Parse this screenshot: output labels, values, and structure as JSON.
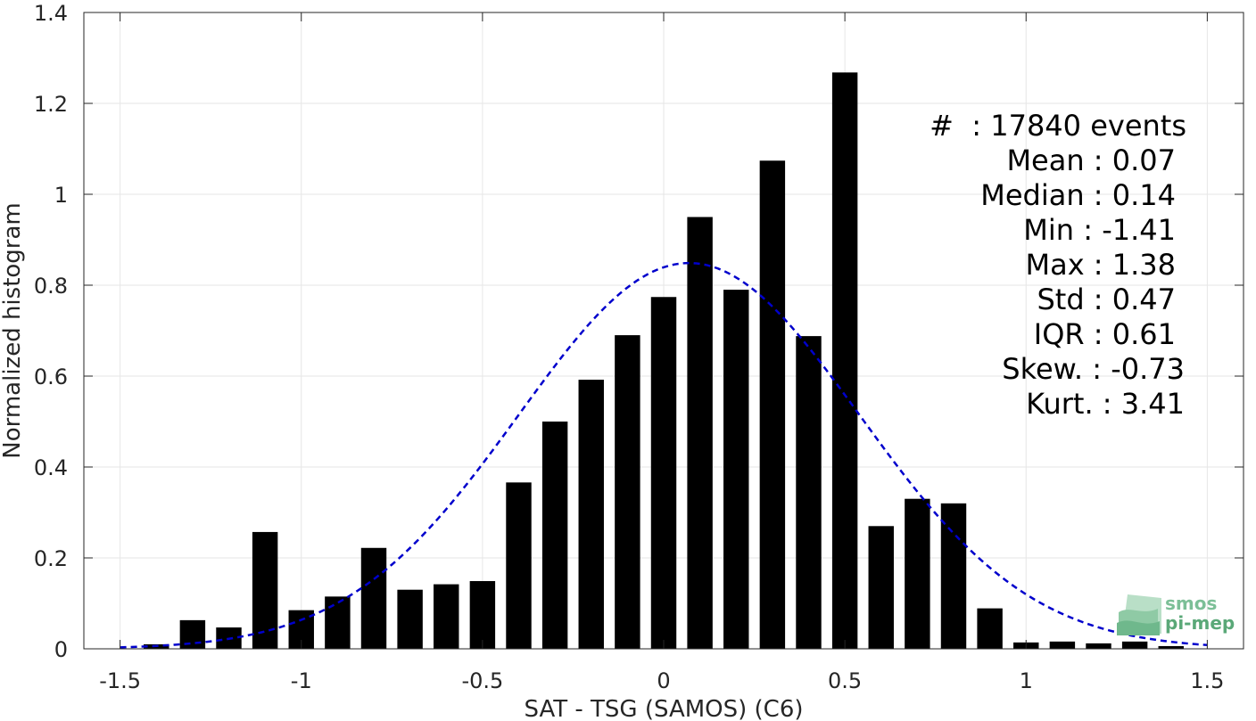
{
  "chart_data": {
    "type": "bar",
    "xlabel": "SAT - TSG (SAMOS) (C6)",
    "ylabel": "Normalized histogram",
    "xlim": [
      -1.6,
      1.6
    ],
    "ylim": [
      0,
      1.4
    ],
    "xticks": [
      "-1.5",
      "-1",
      "-0.5",
      "0",
      "0.5",
      "1",
      "1.5"
    ],
    "yticks": [
      "0",
      "0.2",
      "0.4",
      "0.6",
      "0.8",
      "1",
      "1.2",
      "1.4"
    ],
    "grid": true,
    "bar_width": 0.07,
    "x": [
      -1.4,
      -1.3,
      -1.2,
      -1.1,
      -1.0,
      -0.9,
      -0.8,
      -0.7,
      -0.6,
      -0.5,
      -0.4,
      -0.3,
      -0.2,
      -0.1,
      0.0,
      0.1,
      0.2,
      0.3,
      0.4,
      0.5,
      0.6,
      0.7,
      0.8,
      0.9,
      1.0,
      1.1,
      1.2,
      1.3,
      1.4
    ],
    "values": [
      0.01,
      0.063,
      0.047,
      0.257,
      0.085,
      0.115,
      0.222,
      0.13,
      0.142,
      0.149,
      0.366,
      0.5,
      0.592,
      0.69,
      0.774,
      0.95,
      0.79,
      1.074,
      0.688,
      1.268,
      0.27,
      0.33,
      0.32,
      0.089,
      0.014,
      0.016,
      0.012,
      0.016,
      0.006
    ],
    "fit": {
      "type": "normal-pdf",
      "mean": 0.07,
      "std": 0.47,
      "x_range": [
        -1.5,
        1.5
      ],
      "color": "#0000cc",
      "style": "dashed"
    }
  },
  "stats": {
    "line1": "#  : 17840 events",
    "line2": "Mean : 0.07",
    "line3": "Median : 0.14",
    "line4": "Min : -1.41",
    "line5": "Max : 1.38",
    "line6": "Std : 0.47",
    "line7": "IQR : 0.61",
    "line8": "Skew. : -0.73",
    "line9": "Kurt. : 3.41"
  },
  "logo": {
    "line1": "smos",
    "line2": "pi-mep",
    "color": "#7cbf97"
  },
  "colors": {
    "bar": "#000000",
    "grid": "#e6e6e6",
    "axis": "#262626"
  }
}
